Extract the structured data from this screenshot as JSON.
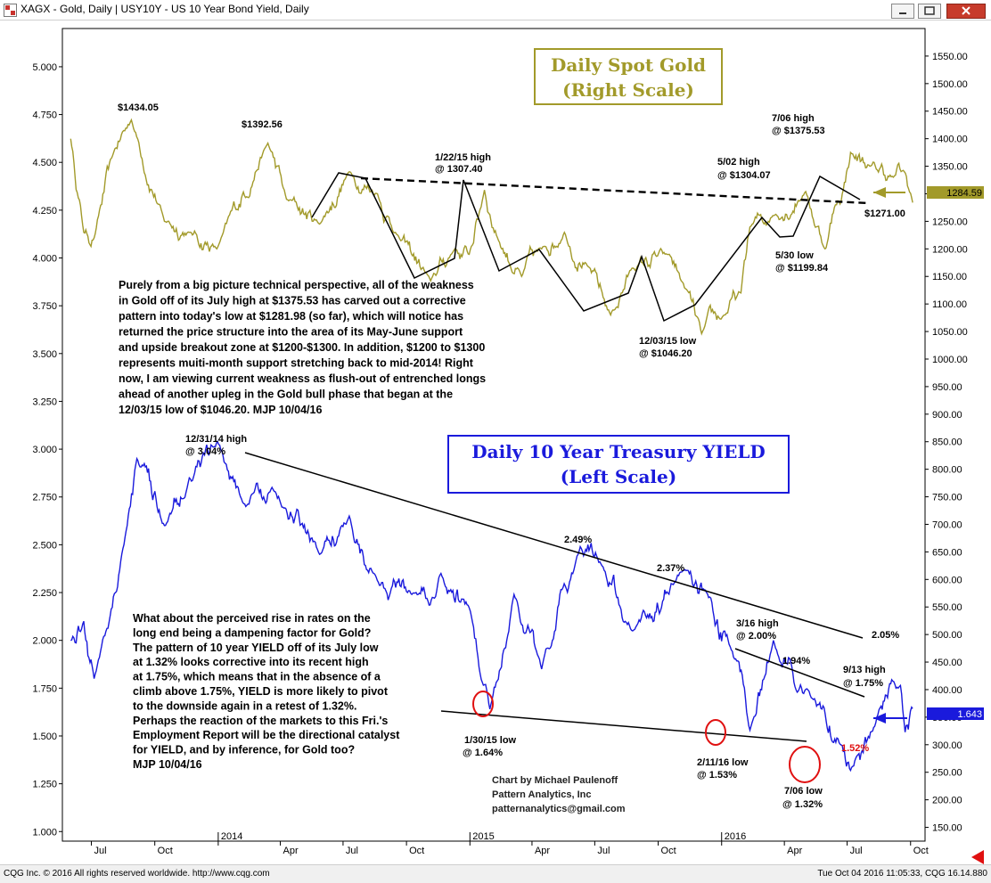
{
  "window": {
    "title": "XAGX - Gold, Daily    |    USY10Y - US 10 Year Bond Yield, Daily",
    "colors": {
      "close": "#c73b2b",
      "gold": "#a29a2a",
      "yield": "#1a1adc",
      "red": "#e01010"
    }
  },
  "footer": {
    "left": "CQG Inc. © 2016 All rights reserved worldwide. http://www.cqg.com",
    "right": "Tue Oct 04 2016 11:05:33, CQG 16.14.880"
  },
  "chart_data": {
    "type": "line",
    "x_tick_labels": [
      "Jul",
      "Oct",
      "2014",
      "Apr",
      "Jul",
      "Oct",
      "2015",
      "Apr",
      "Jul",
      "Oct",
      "2016",
      "Apr",
      "Jul",
      "Oct"
    ],
    "left_axis": {
      "label": "Daily 10 Year Treasury YIELD (Left Scale)",
      "ylim": [
        0.95,
        5.2
      ],
      "ticks": [
        "5.000",
        "4.750",
        "4.500",
        "4.250",
        "4.000",
        "3.750",
        "3.500",
        "3.250",
        "3.000",
        "2.750",
        "2.500",
        "2.250",
        "2.000",
        "1.750",
        "1.500",
        "1.250",
        "1.000"
      ]
    },
    "right_axis": {
      "label": "Daily Spot Gold (Right Scale)",
      "ylim": [
        125,
        1600
      ],
      "ticks": [
        "1550.00",
        "1500.00",
        "1450.00",
        "1400.00",
        "1350.00",
        "1300.00",
        "1250.00",
        "1200.00",
        "1150.00",
        "1100.00",
        "1050.00",
        "1000.00",
        "950.00",
        "900.00",
        "850.00",
        "800.00",
        "750.00",
        "700.00",
        "650.00",
        "600.00",
        "550.00",
        "500.00",
        "450.00",
        "400.00",
        "350.00",
        "300.00",
        "250.00",
        "200.00",
        "150.00"
      ]
    },
    "gold_last": "1284.59",
    "yield_last": "1.643",
    "title_boxes": {
      "gold": [
        "Daily Spot Gold",
        "(Right Scale)"
      ],
      "yield": [
        "Daily 10 Year Treasury YIELD",
        "(Left Scale)"
      ]
    },
    "series": [
      {
        "name": "Gold",
        "axis": "right",
        "dates": [
          "2013-06-01",
          "2013-06-20",
          "2013-07-05",
          "2013-08-01",
          "2013-08-28",
          "2013-10-15",
          "2013-11-20",
          "2013-12-30",
          "2014-03-14",
          "2014-04-10",
          "2014-05-28",
          "2014-07-10",
          "2014-08-20",
          "2014-09-15",
          "2014-11-05",
          "2014-12-10",
          "2014-12-31",
          "2015-01-22",
          "2015-02-10",
          "2015-03-17",
          "2015-04-15",
          "2015-05-18",
          "2015-06-20",
          "2015-07-24",
          "2015-08-24",
          "2015-10-14",
          "2015-11-05",
          "2015-12-03",
          "2016-01-05",
          "2016-01-29",
          "2016-02-11",
          "2016-03-15",
          "2016-05-02",
          "2016-05-30",
          "2016-06-14",
          "2016-06-24",
          "2016-07-06",
          "2016-08-03",
          "2016-09-06",
          "2016-09-22",
          "2016-10-04"
        ],
        "values": [
          1400,
          1230,
          1220,
          1370,
          1434,
          1250,
          1230,
          1200,
          1392,
          1290,
          1245,
          1340,
          1300,
          1230,
          1142,
          1200,
          1190,
          1307,
          1220,
          1150,
          1200,
          1230,
          1170,
          1080,
          1165,
          1190,
          1140,
          1046,
          1080,
          1120,
          1240,
          1260,
          1304,
          1200,
          1280,
          1300,
          1375,
          1350,
          1330,
          1340,
          1284
        ]
      },
      {
        "name": "Yield",
        "axis": "left",
        "dates": [
          "2013-06-01",
          "2013-06-20",
          "2013-07-05",
          "2013-08-22",
          "2013-09-05",
          "2013-10-15",
          "2013-11-20",
          "2013-12-31",
          "2014-02-10",
          "2014-03-20",
          "2014-05-28",
          "2014-07-10",
          "2014-08-15",
          "2014-10-15",
          "2014-11-20",
          "2014-12-31",
          "2015-01-30",
          "2015-03-06",
          "2015-04-15",
          "2015-06-10",
          "2015-07-10",
          "2015-08-25",
          "2015-11-09",
          "2015-12-10",
          "2016-01-15",
          "2016-02-11",
          "2016-03-16",
          "2016-05-10",
          "2016-06-24",
          "2016-07-06",
          "2016-08-10",
          "2016-09-13",
          "2016-09-23",
          "2016-10-04"
        ],
        "values": [
          2.0,
          2.1,
          1.8,
          2.6,
          2.95,
          2.6,
          2.85,
          3.04,
          2.7,
          2.8,
          2.45,
          2.65,
          2.35,
          2.25,
          2.35,
          2.17,
          1.64,
          2.24,
          1.85,
          2.49,
          2.4,
          2.05,
          2.37,
          2.25,
          1.95,
          1.53,
          2.0,
          1.7,
          1.45,
          1.32,
          1.55,
          1.75,
          1.52,
          1.643
        ]
      }
    ],
    "annotations": {
      "gold": {
        "a1434": "$1434.05",
        "a1392": "$1392.56",
        "a1307": [
          "1/22/15 high",
          "@ 1307.40"
        ],
        "a1046": [
          "12/03/15 low",
          "@ $1046.20"
        ],
        "a1304": [
          "5/02 high",
          "@ $1304.07"
        ],
        "a1375": [
          "7/06 high",
          "@ $1375.53"
        ],
        "a1199": [
          "5/30 low",
          "@ $1199.84"
        ],
        "a1271": "$1271.00"
      },
      "yield": {
        "y304": [
          "12/31/14 high",
          "@ 3.04%"
        ],
        "y249": "2.49%",
        "y237": "2.37%",
        "y164": [
          "1/30/15 low",
          "@ 1.64%"
        ],
        "y153": [
          "2/11/16 low",
          "@ 1.53%"
        ],
        "y200": [
          "3/16 high",
          "@ 2.00%"
        ],
        "y194": "1.94%",
        "y175": [
          "9/13 high",
          "@ 1.75%"
        ],
        "y205": "2.05%",
        "y132": [
          "7/06 low",
          "@ 1.32%"
        ],
        "y152": "1.52%"
      },
      "commentary_gold": [
        "Purely from a big picture technical perspective, all of the weakness",
        "in Gold off of its July high at $1375.53 has carved out a corrective",
        "pattern into today's low at $1281.98 (so far), which will notice has",
        "returned the price structure into the area of its May-June support",
        "and upside breakout zone at $1200-$1300. In addition, $1200 to $1300",
        "represents muiti-month support stretching back to mid-2014! Right",
        "now, I am viewing current weakness as flush-out of entrenched longs",
        "ahead of another upleg in the Gold bull phase that began at the",
        "12/03/15 low of $1046.20. MJP 10/04/16"
      ],
      "commentary_yield": [
        "What about the perceived rise in rates on the",
        "long end being a dampening factor for Gold?",
        "The pattern of 10 year YIELD off of its July low",
        "at 1.32% looks corrective into its recent high",
        "at 1.75%, which means that in the absence of a",
        "climb above 1.75%, YIELD is more likely to pivot",
        "to the downside again in a retest of 1.32%.",
        "    Perhaps the reaction of the markets to this Fri.'s",
        "Employment Report will be the directional catalyst",
        "for YIELD, and by inference, for Gold too?",
        "                    MJP 10/04/16"
      ],
      "credit": [
        "Chart by Michael Paulenoff",
        "Pattern Analytics, Inc",
        "patternanalytics@gmail.com"
      ]
    }
  }
}
